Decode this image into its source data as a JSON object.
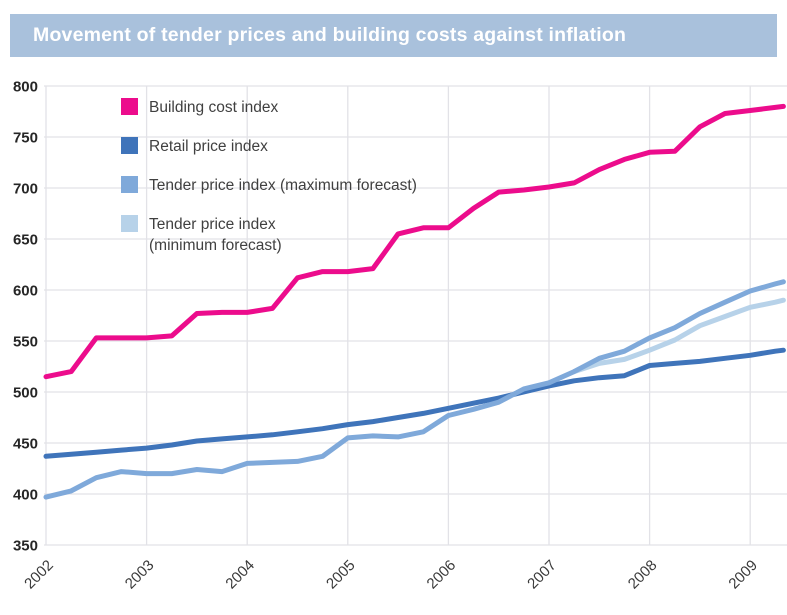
{
  "header": {
    "title": "Movement of tender prices and building costs against inflation"
  },
  "styles": {
    "banner_bg": "#a9c1dc",
    "banner_text": "#ffffff",
    "grid_color": "#e2e2e7",
    "y_tick_color": "#262626",
    "x_tick_color": "#3a3a3a",
    "background": "#ffffff"
  },
  "chart_data": {
    "type": "line",
    "title": "Movement of tender prices and building costs against inflation",
    "xlabel": "",
    "ylabel": "",
    "grid": true,
    "legend_position": "top-left",
    "x_axis": {
      "min": 2002,
      "max": 2009.35,
      "ticks": [
        2002,
        2003,
        2004,
        2005,
        2006,
        2007,
        2008,
        2009
      ]
    },
    "y_axis": {
      "min": 350,
      "max": 800,
      "step": 50,
      "ticks": [
        350,
        400,
        450,
        500,
        550,
        600,
        650,
        700,
        750,
        800
      ]
    },
    "draw_order": [
      1,
      3,
      2,
      0
    ],
    "series": [
      {
        "name": "Building cost index",
        "color": "#ec0c8c",
        "points": [
          [
            2002,
            515
          ],
          [
            2002.25,
            520
          ],
          [
            2002.5,
            553
          ],
          [
            2002.75,
            553
          ],
          [
            2003,
            553
          ],
          [
            2003.25,
            555
          ],
          [
            2003.5,
            577
          ],
          [
            2003.75,
            578
          ],
          [
            2004,
            578
          ],
          [
            2004.25,
            582
          ],
          [
            2004.5,
            612
          ],
          [
            2004.75,
            618
          ],
          [
            2005,
            618
          ],
          [
            2005.25,
            621
          ],
          [
            2005.5,
            655
          ],
          [
            2005.75,
            661
          ],
          [
            2006,
            661
          ],
          [
            2006.25,
            680
          ],
          [
            2006.5,
            696
          ],
          [
            2006.75,
            698
          ],
          [
            2007,
            701
          ],
          [
            2007.25,
            705
          ],
          [
            2007.5,
            718
          ],
          [
            2007.75,
            728
          ],
          [
            2008,
            735
          ],
          [
            2008.25,
            736
          ],
          [
            2008.5,
            760
          ],
          [
            2008.75,
            773
          ],
          [
            2009,
            776
          ],
          [
            2009.25,
            779
          ],
          [
            2009.33,
            780
          ]
        ]
      },
      {
        "name": "Retail price index",
        "color": "#3f74ba",
        "points": [
          [
            2002,
            437
          ],
          [
            2002.25,
            439
          ],
          [
            2002.5,
            441
          ],
          [
            2002.75,
            443
          ],
          [
            2003,
            445
          ],
          [
            2003.25,
            448
          ],
          [
            2003.5,
            452
          ],
          [
            2003.75,
            454
          ],
          [
            2004,
            456
          ],
          [
            2004.25,
            458
          ],
          [
            2004.5,
            461
          ],
          [
            2004.75,
            464
          ],
          [
            2005,
            468
          ],
          [
            2005.25,
            471
          ],
          [
            2005.5,
            475
          ],
          [
            2005.75,
            479
          ],
          [
            2006,
            484
          ],
          [
            2006.25,
            489
          ],
          [
            2006.5,
            494
          ],
          [
            2006.75,
            500
          ],
          [
            2007,
            506
          ],
          [
            2007.25,
            511
          ],
          [
            2007.5,
            514
          ],
          [
            2007.75,
            516
          ],
          [
            2008,
            526
          ],
          [
            2008.25,
            528
          ],
          [
            2008.5,
            530
          ],
          [
            2008.75,
            533
          ],
          [
            2009,
            536
          ],
          [
            2009.25,
            540
          ],
          [
            2009.33,
            541
          ]
        ]
      },
      {
        "name": "Tender price index (maximum forecast)",
        "color": "#7fa9da",
        "points": [
          [
            2002,
            397
          ],
          [
            2002.25,
            403
          ],
          [
            2002.5,
            416
          ],
          [
            2002.75,
            422
          ],
          [
            2003,
            420
          ],
          [
            2003.25,
            420
          ],
          [
            2003.5,
            424
          ],
          [
            2003.75,
            422
          ],
          [
            2004,
            430
          ],
          [
            2004.25,
            431
          ],
          [
            2004.5,
            432
          ],
          [
            2004.75,
            437
          ],
          [
            2005,
            455
          ],
          [
            2005.25,
            457
          ],
          [
            2005.5,
            456
          ],
          [
            2005.75,
            461
          ],
          [
            2006,
            477
          ],
          [
            2006.25,
            483
          ],
          [
            2006.5,
            490
          ],
          [
            2006.75,
            503
          ],
          [
            2007,
            509
          ],
          [
            2007.25,
            520
          ],
          [
            2007.5,
            533
          ],
          [
            2007.75,
            540
          ],
          [
            2008,
            553
          ],
          [
            2008.25,
            563
          ],
          [
            2008.5,
            577
          ],
          [
            2008.75,
            588
          ],
          [
            2009,
            599
          ],
          [
            2009.25,
            606
          ],
          [
            2009.33,
            608
          ]
        ]
      },
      {
        "name": "Tender price index (minimum forecast)",
        "color": "#b7d2e9",
        "points": [
          [
            2007.25,
            520
          ],
          [
            2007.5,
            528
          ],
          [
            2007.75,
            532
          ],
          [
            2008,
            541
          ],
          [
            2008.25,
            551
          ],
          [
            2008.5,
            565
          ],
          [
            2008.75,
            574
          ],
          [
            2009,
            583
          ],
          [
            2009.25,
            588
          ],
          [
            2009.33,
            590
          ]
        ]
      }
    ]
  }
}
